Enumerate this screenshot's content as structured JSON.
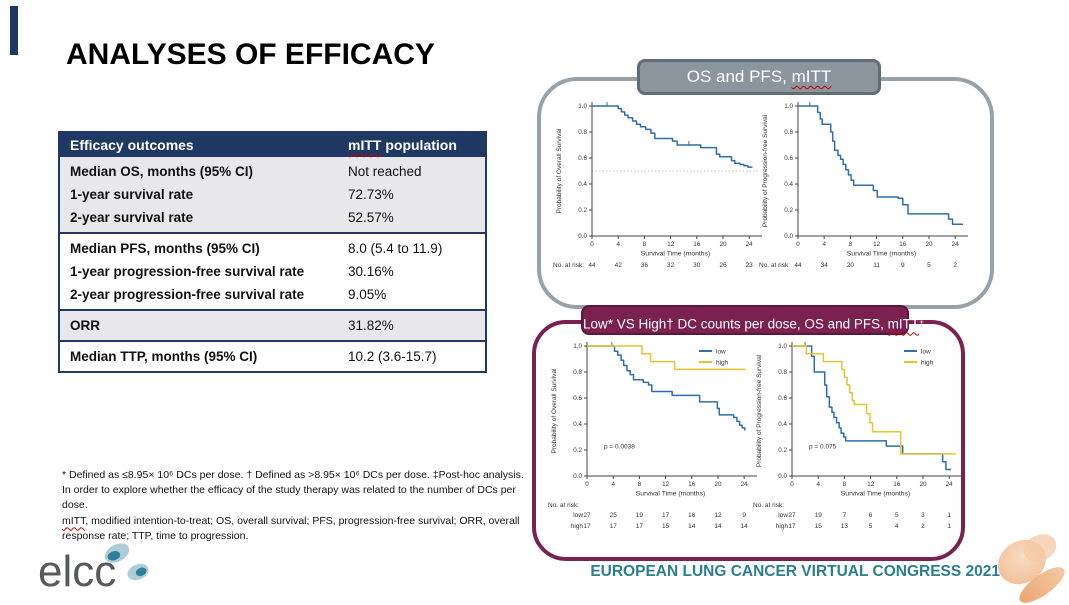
{
  "slide": {
    "title": "ANALYSES OF EFFICACY",
    "congress_footer": "EUROPEAN LUNG CANCER VIRTUAL CONGRESS 2021",
    "logo_text": "elcc",
    "accent_color": "#1f3864"
  },
  "table": {
    "header": {
      "col1": "Efficacy outcomes",
      "col2_mitt": "mITT",
      "col2_rest": " population"
    },
    "groups": [
      {
        "shade": "gray",
        "rows": [
          {
            "label": "Median OS, months (95% CI)",
            "value": "Not reached"
          },
          {
            "label": "1-year survival rate",
            "value": "72.73%"
          },
          {
            "label": "2-year survival rate",
            "value": "52.57%"
          }
        ]
      },
      {
        "shade": "white",
        "rows": [
          {
            "label": "Median PFS, months (95% CI)",
            "value": "8.0 (5.4 to 11.9)"
          },
          {
            "label": "1-year progression-free survival rate",
            "value": "30.16%"
          },
          {
            "label": "2-year progression-free survival rate",
            "value": "9.05%"
          }
        ]
      },
      {
        "shade": "gray",
        "rows": [
          {
            "label": "ORR",
            "value": "31.82%"
          }
        ]
      },
      {
        "shade": "white",
        "rows": [
          {
            "label": "Median TTP, months (95% CI)",
            "value": "10.2 (3.6-15.7)"
          }
        ]
      }
    ]
  },
  "panels": {
    "top": {
      "title_prefix": "OS and PFS, ",
      "title_mitt": "mITT",
      "border_color": "#97a1a9",
      "header_color": "#8b959d"
    },
    "bottom": {
      "title_prefix": "Low* VS High† DC counts per dose, OS and PFS, ",
      "title_mitt": "mITT",
      "title_suffix": "‡",
      "border_color": "#7b2150",
      "header_color": "#7b2150"
    }
  },
  "footnotes": {
    "line1": "* Defined as ≤8.95× 10⁶ DCs per dose. † Defined as >8.95× 10⁶ DCs per dose. ‡Post-hoc analysis. In order to explore whether the efficacy of the study therapy was related to the number of DCs per dose.",
    "mitt": "mITT",
    "line2_rest": ", modified intention-to-treat; OS, overall survival; PFS, progression-free survival; ORR, overall response rate; TTP, time to progression."
  },
  "colors": {
    "curve_blue": "#2c6fae",
    "curve_yellow": "#e7c32f",
    "navy": "#1f3864",
    "teal": "#2a7e91",
    "maroon": "#7b2150"
  },
  "chart_data": [
    {
      "type": "line",
      "subtype": "kaplan-meier-step",
      "title": "OS, mITT",
      "ylabel": "Probability of Overall Survival",
      "xlabel": "Survival Time (months)",
      "xticks": [
        0,
        4,
        8,
        12,
        16,
        20,
        24
      ],
      "yticks": [
        0,
        0.2,
        0.4,
        0.6,
        0.8,
        1
      ],
      "xlim": [
        0,
        25.5
      ],
      "ylim": [
        0,
        1
      ],
      "median_ref_line": 0.5,
      "series": [
        {
          "name": "mITT",
          "color": "#2c6fae",
          "points": [
            [
              0,
              1.0
            ],
            [
              4,
              0.98
            ],
            [
              4.5,
              0.955
            ],
            [
              5,
              0.93
            ],
            [
              5.5,
              0.91
            ],
            [
              6.2,
              0.885
            ],
            [
              6.8,
              0.86
            ],
            [
              7.4,
              0.84
            ],
            [
              8.2,
              0.82
            ],
            [
              9,
              0.79
            ],
            [
              9.6,
              0.75
            ],
            [
              12.3,
              0.73
            ],
            [
              13,
              0.7
            ],
            [
              16.6,
              0.68
            ],
            [
              19,
              0.63
            ],
            [
              19.5,
              0.61
            ],
            [
              21.3,
              0.58
            ],
            [
              21.8,
              0.56
            ],
            [
              22.6,
              0.55
            ],
            [
              23.2,
              0.54
            ],
            [
              23.8,
              0.53
            ],
            [
              24.5,
              0.53
            ]
          ],
          "censors": [
            [
              2.3,
              1.0
            ],
            [
              14.8,
              0.7
            ]
          ]
        }
      ],
      "no_at_risk": {
        "label": "No. at risk:",
        "rows": [
          {
            "name": "",
            "values": [
              44,
              42,
              36,
              32,
              30,
              26,
              23
            ]
          }
        ]
      }
    },
    {
      "type": "line",
      "subtype": "kaplan-meier-step",
      "title": "PFS, mITT",
      "ylabel": "Probability of Progression-free Survival",
      "xlabel": "Survival Time (months)",
      "xticks": [
        0,
        4,
        8,
        12,
        16,
        20,
        24
      ],
      "yticks": [
        0,
        0.2,
        0.4,
        0.6,
        0.8,
        1
      ],
      "xlim": [
        0,
        25.5
      ],
      "ylim": [
        0,
        1
      ],
      "series": [
        {
          "name": "mITT",
          "color": "#2c6fae",
          "points": [
            [
              0,
              1.0
            ],
            [
              3,
              0.95
            ],
            [
              3.4,
              0.9
            ],
            [
              3.7,
              0.86
            ],
            [
              5,
              0.8
            ],
            [
              5.3,
              0.73
            ],
            [
              5.6,
              0.66
            ],
            [
              6.1,
              0.62
            ],
            [
              6.5,
              0.59
            ],
            [
              6.9,
              0.55
            ],
            [
              7.3,
              0.51
            ],
            [
              7.7,
              0.47
            ],
            [
              8.1,
              0.43
            ],
            [
              8.5,
              0.39
            ],
            [
              11.5,
              0.35
            ],
            [
              12.1,
              0.3
            ],
            [
              15.3,
              0.29
            ],
            [
              16,
              0.24
            ],
            [
              16.8,
              0.17
            ],
            [
              23,
              0.13
            ],
            [
              23.6,
              0.09
            ],
            [
              25.2,
              0.09
            ]
          ],
          "censors": [
            [
              1.8,
              1.0
            ]
          ]
        }
      ],
      "no_at_risk": {
        "label": "No. at risk:",
        "rows": [
          {
            "name": "",
            "values": [
              44,
              34,
              20,
              11,
              9,
              5,
              2
            ]
          }
        ]
      }
    },
    {
      "type": "line",
      "subtype": "kaplan-meier-step",
      "title": "OS, low vs high DC counts per dose",
      "ylabel": "Probability of Overall Survival",
      "xlabel": "Survival Time (months)",
      "xticks": [
        0,
        4,
        8,
        12,
        16,
        20,
        24
      ],
      "yticks": [
        0,
        0.2,
        0.4,
        0.6,
        0.8,
        1
      ],
      "xlim": [
        0,
        25.5
      ],
      "ylim": [
        0,
        1
      ],
      "p_value": "p = 0.0038",
      "legend_position": "top-right",
      "series": [
        {
          "name": "low",
          "color": "#2c6fae",
          "points": [
            [
              0,
              1.0
            ],
            [
              4.2,
              0.96
            ],
            [
              4.7,
              0.93
            ],
            [
              5.2,
              0.89
            ],
            [
              5.6,
              0.85
            ],
            [
              6.1,
              0.81
            ],
            [
              6.6,
              0.78
            ],
            [
              7.1,
              0.74
            ],
            [
              8.6,
              0.72
            ],
            [
              9.4,
              0.7
            ],
            [
              9.9,
              0.65
            ],
            [
              13,
              0.62
            ],
            [
              17.2,
              0.57
            ],
            [
              19.9,
              0.52
            ],
            [
              20.2,
              0.47
            ],
            [
              22.4,
              0.45
            ],
            [
              22.9,
              0.42
            ],
            [
              23.3,
              0.39
            ],
            [
              23.7,
              0.37
            ],
            [
              24.1,
              0.35
            ]
          ],
          "censors": [
            [
              3.8,
              1.0
            ]
          ]
        },
        {
          "name": "high",
          "color": "#e7c32f",
          "points": [
            [
              0,
              1.0
            ],
            [
              8.4,
              0.94
            ],
            [
              9.7,
              0.88
            ],
            [
              13.4,
              0.82
            ],
            [
              24.2,
              0.82
            ]
          ],
          "censors": []
        }
      ],
      "no_at_risk": {
        "label": "No. at risk:",
        "rows": [
          {
            "name": "low",
            "values": [
              27,
              25,
              19,
              17,
              16,
              12,
              9
            ]
          },
          {
            "name": "high",
            "values": [
              17,
              17,
              17,
              15,
              14,
              14,
              14
            ]
          }
        ]
      }
    },
    {
      "type": "line",
      "subtype": "kaplan-meier-step",
      "title": "PFS, low vs high DC counts per dose",
      "ylabel": "Probability of Progression-free Survival",
      "xlabel": "Survival Time (months)",
      "xticks": [
        0,
        4,
        8,
        12,
        16,
        20,
        24
      ],
      "yticks": [
        0,
        0.2,
        0.4,
        0.6,
        0.8,
        1
      ],
      "xlim": [
        0,
        25.5
      ],
      "ylim": [
        0,
        1
      ],
      "p_value": "p = 0.075",
      "legend_position": "top-right",
      "series": [
        {
          "name": "low",
          "color": "#2c6fae",
          "points": [
            [
              0,
              1.0
            ],
            [
              3,
              0.92
            ],
            [
              3.4,
              0.8
            ],
            [
              5,
              0.7
            ],
            [
              5.3,
              0.61
            ],
            [
              5.7,
              0.53
            ],
            [
              6.1,
              0.49
            ],
            [
              6.4,
              0.45
            ],
            [
              6.8,
              0.41
            ],
            [
              7.2,
              0.37
            ],
            [
              7.5,
              0.33
            ],
            [
              7.9,
              0.3
            ],
            [
              8.2,
              0.27
            ],
            [
              14.4,
              0.23
            ],
            [
              16.9,
              0.17
            ],
            [
              23,
              0.11
            ],
            [
              23.5,
              0.05
            ],
            [
              24.3,
              0.05
            ]
          ],
          "censors": [
            [
              2,
              1.0
            ]
          ]
        },
        {
          "name": "high",
          "color": "#e7c32f",
          "points": [
            [
              0,
              1.0
            ],
            [
              2.2,
              0.94
            ],
            [
              4.8,
              0.88
            ],
            [
              7.6,
              0.82
            ],
            [
              8,
              0.76
            ],
            [
              8.4,
              0.7
            ],
            [
              8.8,
              0.64
            ],
            [
              9.2,
              0.58
            ],
            [
              9.5,
              0.55
            ],
            [
              11.4,
              0.48
            ],
            [
              11.9,
              0.41
            ],
            [
              12.3,
              0.34
            ],
            [
              16.6,
              0.17
            ],
            [
              25,
              0.17
            ]
          ],
          "censors": [
            [
              1.9,
              1.0
            ]
          ]
        }
      ],
      "no_at_risk": {
        "label": "No. at risk:",
        "rows": [
          {
            "name": "low",
            "values": [
              27,
              19,
              7,
              6,
              5,
              3,
              1
            ]
          },
          {
            "name": "high",
            "values": [
              17,
              15,
              13,
              5,
              4,
              2,
              1
            ]
          }
        ]
      }
    }
  ]
}
